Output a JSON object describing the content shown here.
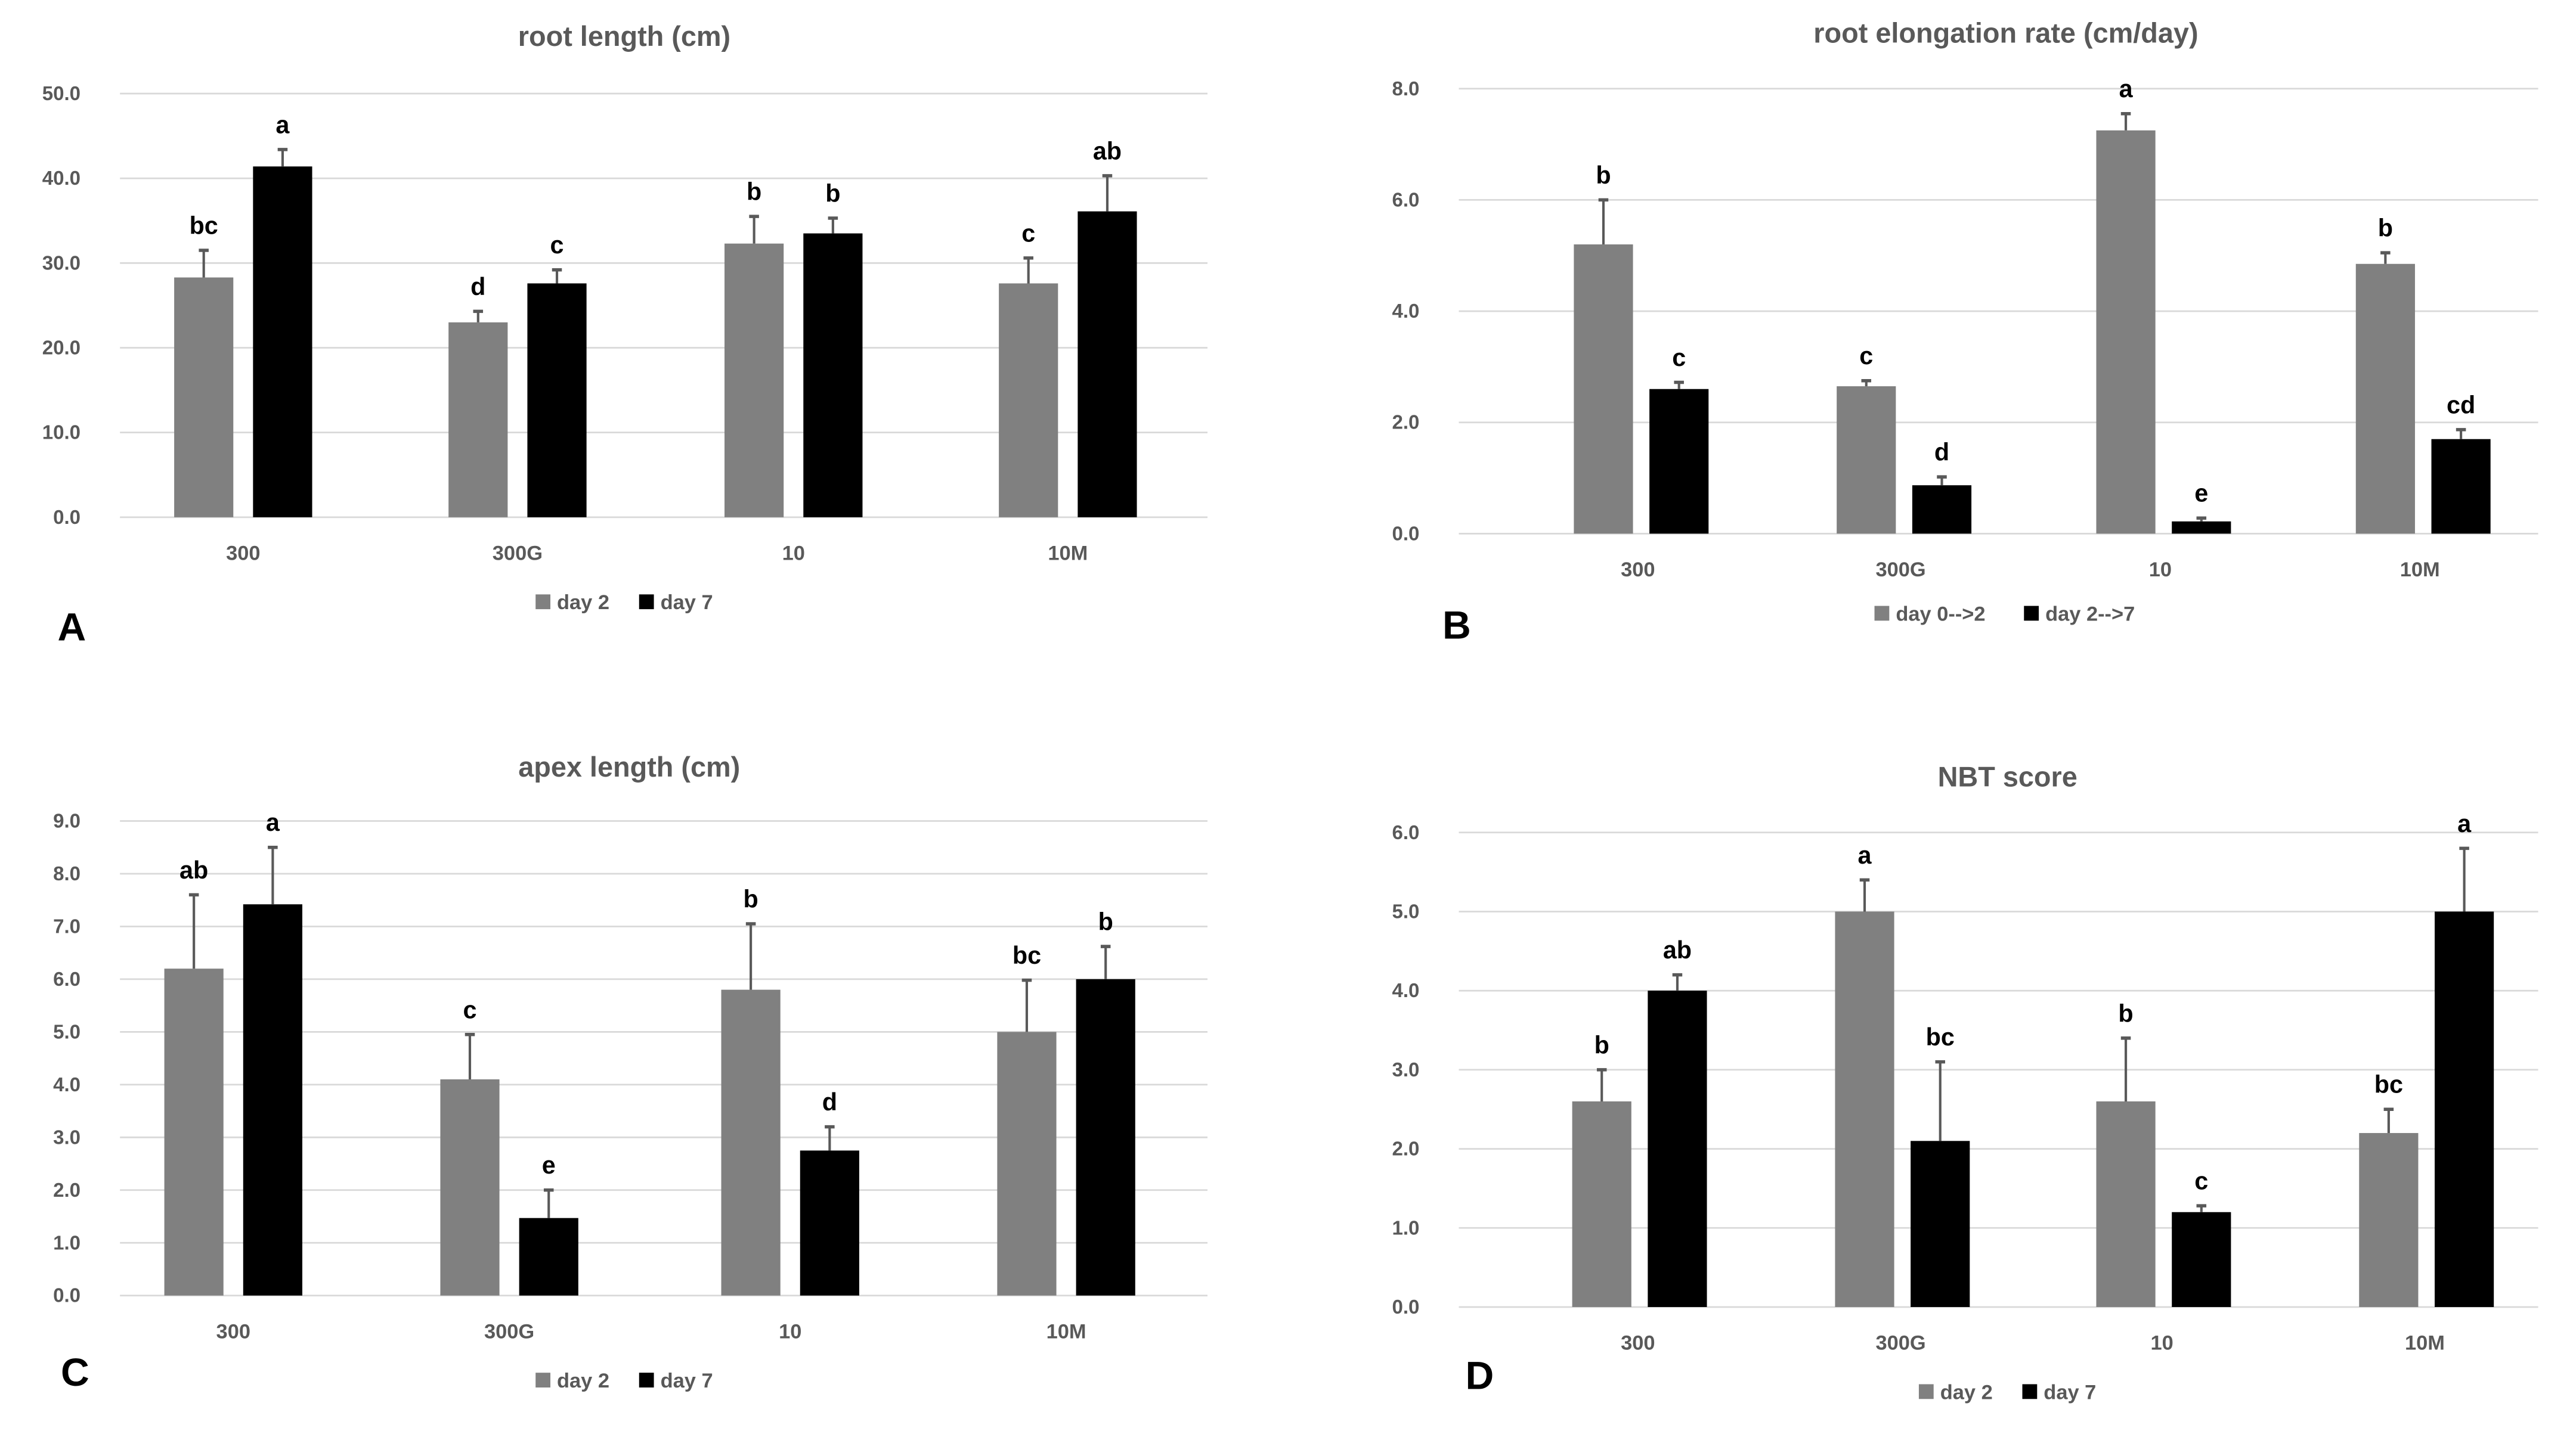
{
  "colors": {
    "series1": "#808080",
    "series2": "#000000",
    "grid": "#d9d9d9",
    "error_bar": "#595959"
  },
  "chart_data": [
    {
      "panel": "A",
      "type": "bar",
      "title": "root length (cm)",
      "categories": [
        "300",
        "300G",
        "10",
        "10M"
      ],
      "ylim": [
        0,
        50
      ],
      "ytick_step": 10,
      "yticks": [
        "0.0",
        "10.0",
        "20.0",
        "30.0",
        "40.0",
        "50.0"
      ],
      "grid": true,
      "legend_position": "bottom",
      "series": [
        {
          "name": "day 2",
          "values": [
            28.3,
            23.0,
            32.3,
            27.6
          ],
          "errors": [
            3.2,
            1.3,
            3.2,
            3.0
          ],
          "labels": [
            "bc",
            "d",
            "b",
            "c"
          ]
        },
        {
          "name": "day 7",
          "values": [
            41.4,
            27.6,
            33.5,
            36.1
          ],
          "errors": [
            2.0,
            1.6,
            1.8,
            4.2
          ],
          "labels": [
            "a",
            "c",
            "b",
            "ab"
          ]
        }
      ]
    },
    {
      "panel": "B",
      "type": "bar",
      "title": "root elongation rate (cm/day)",
      "categories": [
        "300",
        "300G",
        "10",
        "10M"
      ],
      "ylim": [
        0,
        8
      ],
      "ytick_step": 2,
      "yticks": [
        "0.0",
        "2.0",
        "4.0",
        "6.0",
        "8.0"
      ],
      "grid": true,
      "legend_position": "bottom",
      "series": [
        {
          "name": "day 0-->2",
          "values": [
            5.2,
            2.65,
            7.25,
            4.85
          ],
          "errors": [
            0.8,
            0.1,
            0.3,
            0.2
          ],
          "labels": [
            "b",
            "c",
            "a",
            "b"
          ]
        },
        {
          "name": "day 2-->7",
          "values": [
            2.6,
            0.87,
            0.22,
            1.7
          ],
          "errors": [
            0.12,
            0.15,
            0.06,
            0.17
          ],
          "labels": [
            "c",
            "d",
            "e",
            "cd"
          ]
        }
      ]
    },
    {
      "panel": "C",
      "type": "bar",
      "title": "apex length (cm)",
      "categories": [
        "300",
        "300G",
        "10",
        "10M"
      ],
      "ylim": [
        0,
        9
      ],
      "ytick_step": 1,
      "yticks": [
        "0.0",
        "1.0",
        "2.0",
        "3.0",
        "4.0",
        "5.0",
        "6.0",
        "7.0",
        "8.0",
        "9.0"
      ],
      "grid": true,
      "legend_position": "bottom",
      "series": [
        {
          "name": "day 2",
          "values": [
            6.2,
            4.1,
            5.8,
            5.0
          ],
          "errors": [
            1.4,
            0.85,
            1.25,
            0.98
          ],
          "labels": [
            "ab",
            "c",
            "b",
            "bc"
          ]
        },
        {
          "name": "day 7",
          "values": [
            7.42,
            1.47,
            2.75,
            6.0
          ],
          "errors": [
            1.08,
            0.53,
            0.45,
            0.62
          ],
          "labels": [
            "a",
            "e",
            "d",
            "b"
          ]
        }
      ]
    },
    {
      "panel": "D",
      "type": "bar",
      "title": "NBT score",
      "categories": [
        "300",
        "300G",
        "10",
        "10M"
      ],
      "ylim": [
        0,
        6
      ],
      "ytick_step": 1,
      "yticks": [
        "0.0",
        "1.0",
        "2.0",
        "3.0",
        "4.0",
        "5.0",
        "6.0"
      ],
      "grid": true,
      "legend_position": "bottom",
      "series": [
        {
          "name": "day 2",
          "values": [
            2.6,
            5.0,
            2.6,
            2.2
          ],
          "errors": [
            0.4,
            0.4,
            0.8,
            0.3
          ],
          "labels": [
            "b",
            "a",
            "b",
            "bc"
          ]
        },
        {
          "name": "day 7",
          "values": [
            4.0,
            2.1,
            1.2,
            5.0
          ],
          "errors": [
            0.2,
            1.0,
            0.08,
            0.8
          ],
          "labels": [
            "ab",
            "bc",
            "c",
            "a"
          ]
        }
      ]
    }
  ]
}
